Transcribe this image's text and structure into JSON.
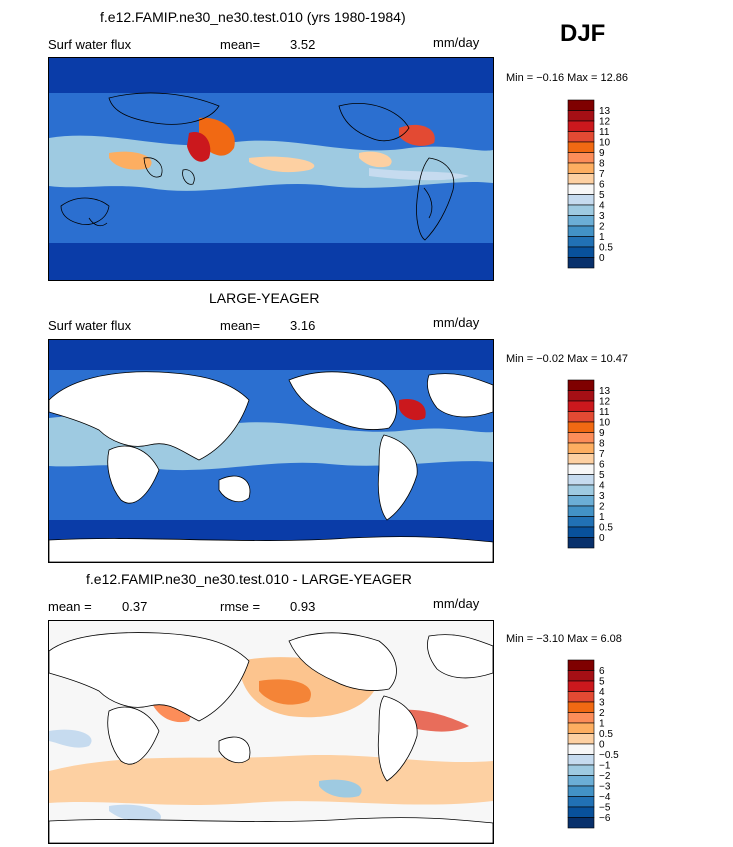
{
  "header": {
    "season": "DJF"
  },
  "panels": [
    {
      "title": "f.e12.FAMIP.ne30_ne30.test.010 (yrs 1980-1984)",
      "left_label": "Surf water flux",
      "stat1_label": "mean=",
      "stat1_value": "3.52",
      "stat2_label": "",
      "stat2_value": "",
      "units": "mm/day",
      "minmax": "Min =  −0.16 Max =  12.86",
      "colorbar": {
        "labels": [
          "13",
          "12",
          "11",
          "10",
          "9",
          "8",
          "7",
          "6",
          "5",
          "4",
          "3",
          "2",
          "1",
          "0.5",
          "0"
        ],
        "colors": [
          "#7f0000",
          "#a50f15",
          "#cb181d",
          "#e34a33",
          "#f16913",
          "#fc8d59",
          "#fdae61",
          "#fdd0a2",
          "#f7f7f7",
          "#c6dbef",
          "#9ecae1",
          "#6baed6",
          "#4292c6",
          "#2171b5",
          "#08519c",
          "#08306b"
        ]
      }
    },
    {
      "title": "LARGE-YEAGER",
      "left_label": "Surf water flux",
      "stat1_label": "mean=",
      "stat1_value": "3.16",
      "stat2_label": "",
      "stat2_value": "",
      "units": "mm/day",
      "minmax": "Min =  −0.02 Max =  10.47",
      "colorbar": {
        "labels": [
          "13",
          "12",
          "11",
          "10",
          "9",
          "8",
          "7",
          "6",
          "5",
          "4",
          "3",
          "2",
          "1",
          "0.5",
          "0"
        ],
        "colors": [
          "#7f0000",
          "#a50f15",
          "#cb181d",
          "#e34a33",
          "#f16913",
          "#fc8d59",
          "#fdae61",
          "#fdd0a2",
          "#f7f7f7",
          "#c6dbef",
          "#9ecae1",
          "#6baed6",
          "#4292c6",
          "#2171b5",
          "#08519c",
          "#08306b"
        ]
      }
    },
    {
      "title": "f.e12.FAMIP.ne30_ne30.test.010 - LARGE-YEAGER",
      "left_label": "",
      "stat1_label": "mean =",
      "stat1_value": "0.37",
      "stat2_label": "rmse =",
      "stat2_value": "0.93",
      "units": "mm/day",
      "minmax": "Min =  −3.10 Max =   6.08",
      "colorbar": {
        "labels": [
          "6",
          "5",
          "4",
          "3",
          "2",
          "1",
          "0.5",
          "0",
          "−0.5",
          "−1",
          "−2",
          "−3",
          "−4",
          "−5",
          "−6"
        ],
        "colors": [
          "#7f0000",
          "#a50f15",
          "#cb181d",
          "#e34a33",
          "#f16913",
          "#fc8d59",
          "#fdae61",
          "#fdd0a2",
          "#f7f7f7",
          "#c6dbef",
          "#9ecae1",
          "#6baed6",
          "#4292c6",
          "#2171b5",
          "#08519c",
          "#08306b"
        ]
      }
    }
  ]
}
